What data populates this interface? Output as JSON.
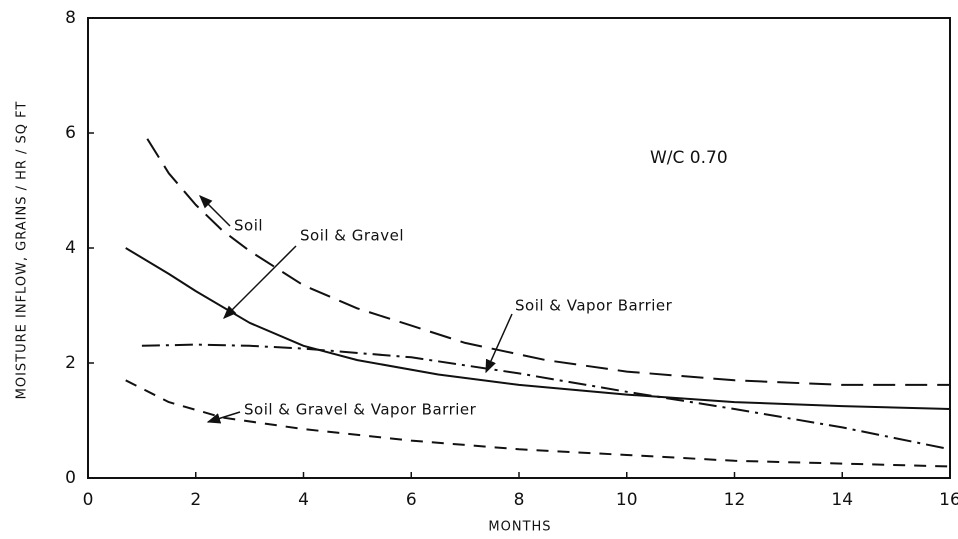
{
  "chart_data": {
    "type": "line",
    "xlabel": "MONTHS",
    "ylabel": "MOISTURE INFLOW, GRAINS / HR / SQ FT",
    "annotations": [
      "W/C 0.70"
    ],
    "xlim": [
      0,
      16
    ],
    "ylim": [
      0,
      8
    ],
    "xticks": [
      0,
      2,
      4,
      6,
      8,
      10,
      12,
      14,
      16
    ],
    "yticks": [
      0,
      2,
      4,
      6,
      8
    ],
    "grid": false,
    "series": [
      {
        "name": "Soil",
        "color": "#111111",
        "dash": "long-dash",
        "x": [
          1.1,
          1.5,
          2,
          2.5,
          3,
          4,
          5,
          6,
          7,
          8.5,
          10,
          12,
          14,
          16
        ],
        "values": [
          5.9,
          5.3,
          4.75,
          4.3,
          3.95,
          3.35,
          2.95,
          2.65,
          2.35,
          2.05,
          1.85,
          1.7,
          1.62,
          1.62
        ]
      },
      {
        "name": "Soil & Gravel",
        "color": "#111111",
        "dash": "solid",
        "x": [
          0.7,
          1.5,
          2,
          3,
          4,
          5,
          6.5,
          8,
          10,
          12,
          14,
          16
        ],
        "values": [
          4.0,
          3.55,
          3.25,
          2.7,
          2.3,
          2.05,
          1.8,
          1.62,
          1.45,
          1.32,
          1.25,
          1.2
        ]
      },
      {
        "name": "Soil & Vapor Barrier",
        "color": "#111111",
        "dash": "dash-dot",
        "x": [
          1,
          2,
          3,
          4,
          6,
          8,
          10,
          12,
          14,
          16
        ],
        "values": [
          2.3,
          2.32,
          2.3,
          2.25,
          2.1,
          1.82,
          1.5,
          1.2,
          0.88,
          0.5
        ]
      },
      {
        "name": "Soil & Gravel & Vapor Barrier",
        "color": "#111111",
        "dash": "short-dash",
        "x": [
          0.7,
          1.5,
          2.5,
          4,
          6,
          8,
          10,
          12,
          14,
          16
        ],
        "values": [
          1.7,
          1.32,
          1.05,
          0.85,
          0.65,
          0.5,
          0.4,
          0.3,
          0.25,
          0.2
        ]
      }
    ]
  }
}
